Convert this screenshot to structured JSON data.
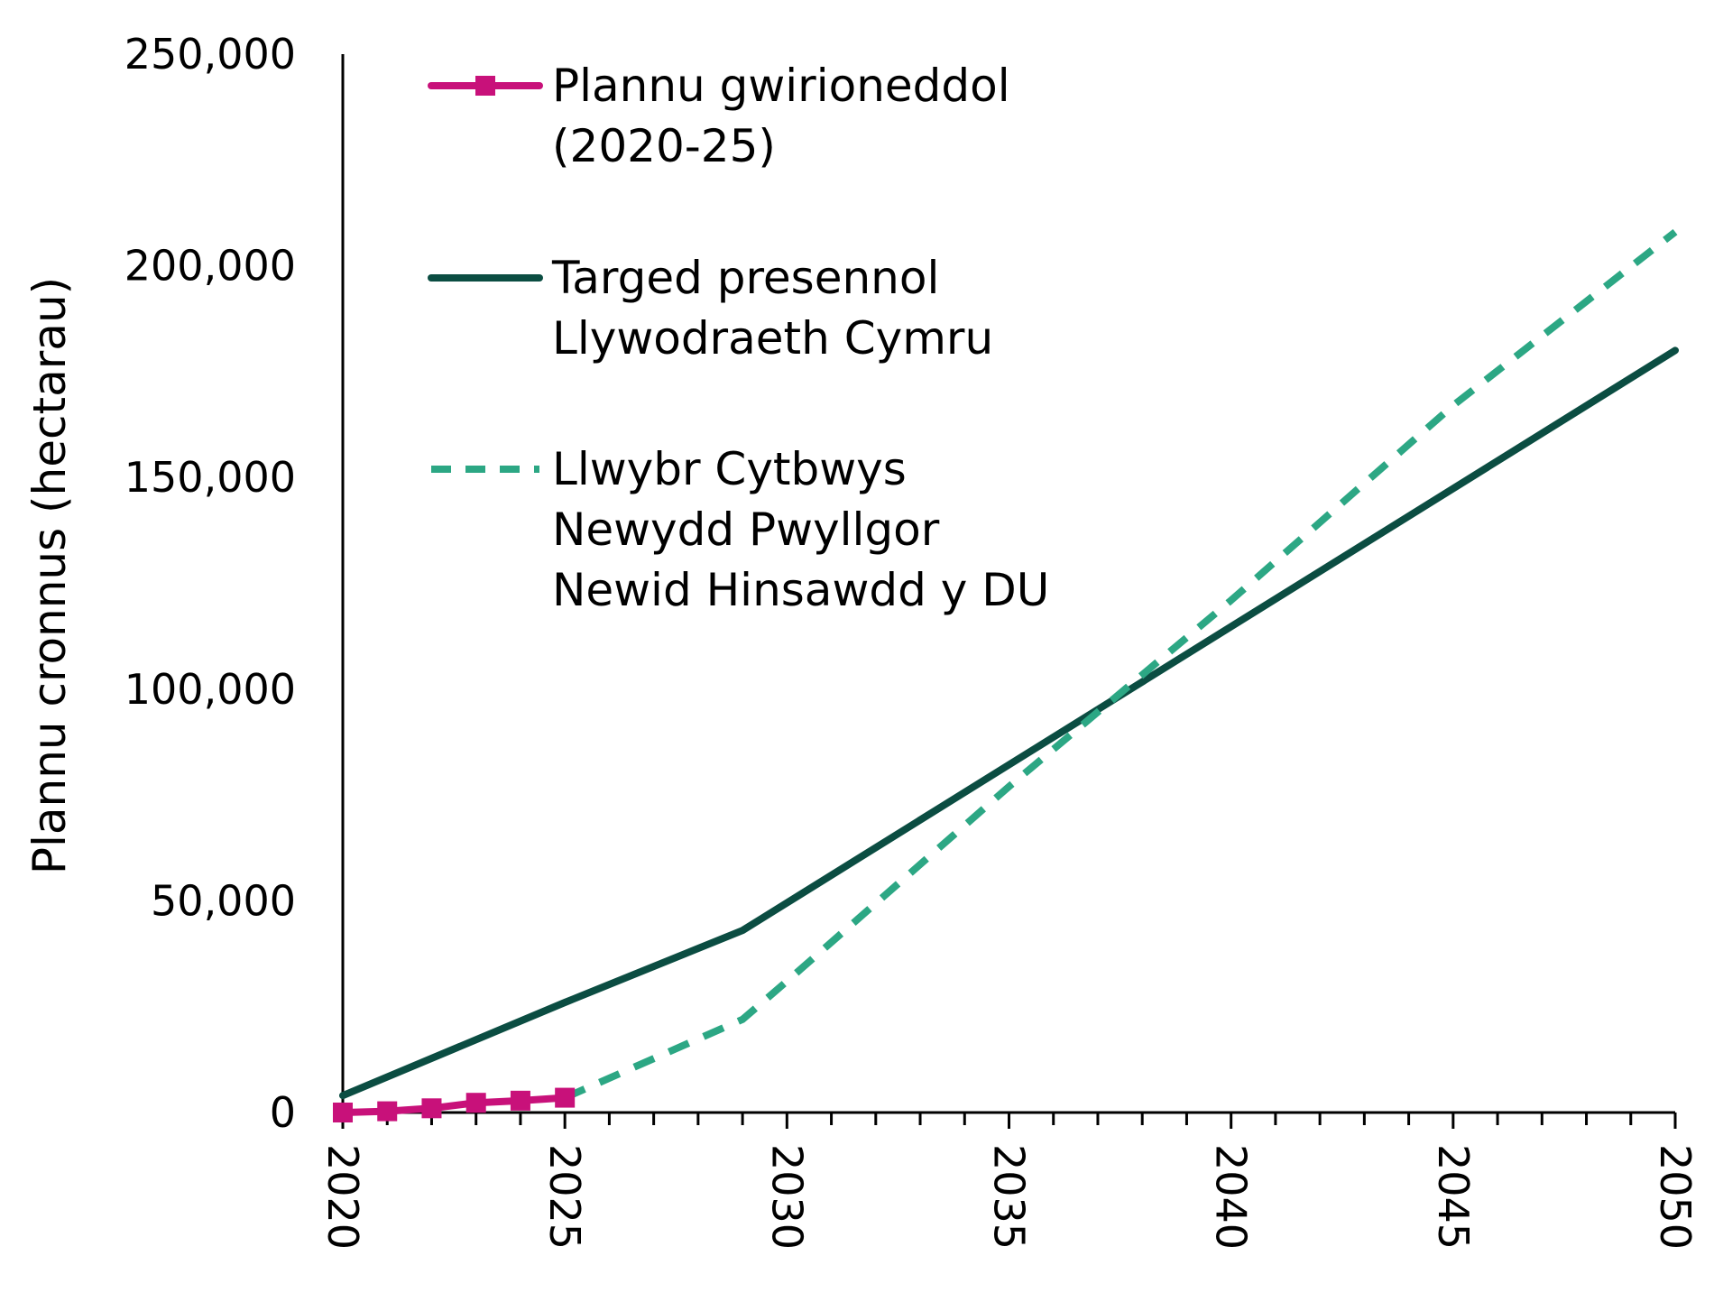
{
  "chart_data": {
    "type": "line",
    "title": "",
    "ylabel": "Plannu cronnus (hectarau)",
    "xlabel": "",
    "xlim": [
      2020,
      2050
    ],
    "ylim": [
      0,
      250000
    ],
    "yticks": [
      0,
      50000,
      100000,
      150000,
      200000,
      250000
    ],
    "ytick_labels": [
      "0",
      "50,000",
      "100,000",
      "150,000",
      "200,000",
      "250,000"
    ],
    "xticks": [
      2020,
      2025,
      2030,
      2035,
      2040,
      2045,
      2050
    ],
    "xtick_labels": [
      "2020",
      "2025",
      "2030",
      "2035",
      "2040",
      "2045",
      "2050"
    ],
    "grid": false,
    "legend_position": "top-left",
    "series": [
      {
        "name_lines": [
          "Plannu gwirioneddol",
          "(2020-25)"
        ],
        "color": "#c8117a",
        "style": "solid-square-markers",
        "x": [
          2020,
          2021,
          2022,
          2023,
          2024,
          2025
        ],
        "y": [
          0,
          300,
          1000,
          2300,
          2800,
          3500
        ]
      },
      {
        "name_lines": [
          "Targed presennol",
          "Llywodraeth Cymru"
        ],
        "color": "#0b4d42",
        "style": "solid",
        "x": [
          2020,
          2025,
          2029,
          2050
        ],
        "y": [
          4000,
          26000,
          43000,
          180000
        ]
      },
      {
        "name_lines": [
          "Llwybr Cytbwys",
          "Newydd Pwyllgor",
          "Newid Hinsawdd y DU"
        ],
        "color": "#2ca784",
        "style": "dashed",
        "x": [
          2025,
          2029,
          2030,
          2035,
          2040,
          2045,
          2050
        ],
        "y": [
          3500,
          22000,
          31000,
          77000,
          121000,
          167000,
          208000
        ]
      }
    ]
  }
}
